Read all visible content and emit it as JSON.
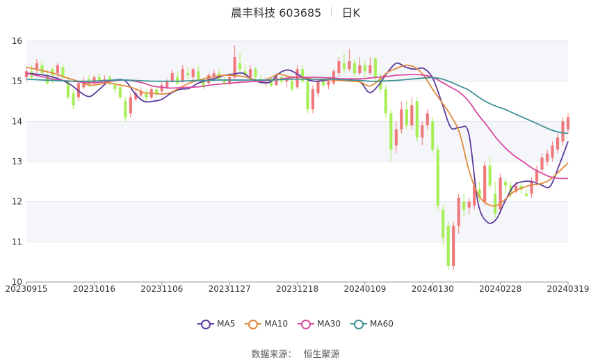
{
  "header": {
    "stock": "晨丰科技 603685",
    "period": "日K"
  },
  "source": {
    "label": "数据来源：",
    "value": "恒生聚源"
  },
  "colors": {
    "up": "#f0787b",
    "down": "#a6ef56",
    "ma5": "#5b3a9d",
    "ma10": "#e0893b",
    "ma30": "#d94aa0",
    "ma60": "#3f9297"
  },
  "chart_data": {
    "type": "candlestick",
    "y_ticks": [
      "10",
      "11",
      "12",
      "13",
      "14",
      "15",
      "16"
    ],
    "ylim": [
      10,
      16
    ],
    "x_ticks": [
      "20230915",
      "20231016",
      "20231106",
      "20231127",
      "20231218",
      "20240109",
      "20240130",
      "20240228",
      "20240319"
    ],
    "grid": true,
    "legend_position": "bottom",
    "series": [
      {
        "name": "MA5",
        "values": [
          15.2,
          15.18,
          15.15,
          15.1,
          15.02,
          14.9,
          14.72,
          14.62,
          14.78,
          14.98,
          15.04,
          15.0,
          14.7,
          14.5,
          14.5,
          14.55,
          14.7,
          14.8,
          14.82,
          14.95,
          15.02,
          15.08,
          15.15,
          15.18,
          15.2,
          15.05,
          14.97,
          14.98,
          15.2,
          15.28,
          15.18,
          15.05,
          15.0,
          15.02,
          15.04,
          15.02,
          15.0,
          14.98,
          14.72,
          14.9,
          15.22,
          15.45,
          15.35,
          15.3,
          15.32,
          15.08,
          14.48,
          13.85,
          13.85,
          13.7,
          12.0,
          11.5,
          11.55,
          12.0,
          12.4,
          12.5,
          12.5,
          12.42,
          12.38,
          12.9,
          13.5
        ]
      },
      {
        "name": "MA10",
        "values": [
          15.35,
          15.3,
          15.25,
          15.2,
          15.12,
          15.05,
          14.98,
          14.9,
          14.92,
          14.96,
          14.92,
          14.88,
          14.82,
          14.72,
          14.7,
          14.68,
          14.72,
          14.84,
          14.95,
          15.02,
          15.08,
          15.12,
          15.15,
          15.14,
          15.12,
          15.06,
          15.0,
          15.08,
          15.18,
          15.12,
          15.1,
          15.08,
          15.05,
          15.04,
          15.03,
          15.02,
          15.0,
          14.98,
          14.88,
          15.02,
          15.22,
          15.32,
          15.4,
          15.35,
          15.15,
          14.8,
          14.48,
          14.15,
          13.7,
          12.8,
          12.2,
          11.95,
          11.9,
          12.05,
          12.25,
          12.35,
          12.42,
          12.45,
          12.55,
          12.75,
          12.97
        ]
      },
      {
        "name": "MA30",
        "values": [
          15.2,
          15.15,
          15.1,
          15.05,
          15.02,
          15.0,
          14.98,
          14.96,
          14.97,
          14.99,
          15.02,
          15.03,
          15.0,
          14.95,
          14.88,
          14.85,
          14.83,
          14.84,
          14.85,
          14.86,
          14.89,
          14.92,
          14.94,
          14.96,
          14.98,
          14.99,
          15.0,
          15.02,
          15.05,
          15.08,
          15.1,
          15.1,
          15.1,
          15.09,
          15.08,
          15.06,
          15.06,
          15.06,
          15.08,
          15.1,
          15.12,
          15.15,
          15.16,
          15.17,
          15.15,
          15.1,
          14.98,
          14.85,
          14.72,
          14.5,
          14.18,
          13.9,
          13.6,
          13.35,
          13.15,
          13.0,
          12.84,
          12.72,
          12.62,
          12.58,
          12.58
        ]
      },
      {
        "name": "MA60",
        "values": [
          15.05,
          15.04,
          15.03,
          15.02,
          15.01,
          15.0,
          15.0,
          15.0,
          15.01,
          15.02,
          15.03,
          15.03,
          15.02,
          15.01,
          15.0,
          15.0,
          15.0,
          15.0,
          15.01,
          15.02,
          15.02,
          15.03,
          15.03,
          15.03,
          15.03,
          15.03,
          15.03,
          15.03,
          15.04,
          15.05,
          15.05,
          15.05,
          15.05,
          15.05,
          15.05,
          15.04,
          15.03,
          15.02,
          15.0,
          15.0,
          15.01,
          15.02,
          15.04,
          15.06,
          15.08,
          15.09,
          15.06,
          14.98,
          14.88,
          14.78,
          14.62,
          14.48,
          14.38,
          14.3,
          14.2,
          14.1,
          14.0,
          13.9,
          13.8,
          13.73,
          13.7
        ]
      }
    ],
    "candles": [
      [
        15.1,
        15.25,
        15.35,
        15.0
      ],
      [
        15.25,
        15.1,
        15.4,
        15.05
      ],
      [
        15.3,
        15.45,
        15.55,
        15.2
      ],
      [
        15.4,
        15.2,
        15.5,
        15.1
      ],
      [
        15.15,
        14.95,
        15.3,
        14.9
      ],
      [
        15.3,
        15.15,
        15.35,
        14.95
      ],
      [
        15.2,
        15.4,
        15.45,
        15.1
      ],
      [
        15.35,
        15.1,
        15.42,
        15.05
      ],
      [
        15.0,
        14.6,
        15.1,
        14.55
      ],
      [
        14.7,
        14.4,
        14.8,
        14.3
      ],
      [
        14.6,
        14.95,
        15.0,
        14.5
      ],
      [
        14.85,
        15.0,
        15.1,
        14.8
      ],
      [
        15.05,
        14.9,
        15.15,
        14.85
      ],
      [
        14.95,
        15.1,
        15.15,
        14.9
      ],
      [
        15.1,
        15.0,
        15.2,
        14.95
      ],
      [
        15.0,
        15.05,
        15.15,
        14.95
      ],
      [
        15.1,
        14.95,
        15.15,
        14.9
      ],
      [
        14.9,
        14.8,
        15.0,
        14.7
      ],
      [
        14.85,
        14.6,
        14.95,
        14.55
      ],
      [
        14.5,
        14.1,
        14.6,
        14.0
      ],
      [
        14.2,
        14.6,
        14.7,
        14.1
      ],
      [
        14.55,
        14.7,
        14.8,
        14.5
      ],
      [
        14.65,
        14.75,
        14.85,
        14.6
      ],
      [
        14.7,
        14.6,
        14.8,
        14.5
      ],
      [
        14.6,
        14.8,
        14.85,
        14.55
      ],
      [
        14.8,
        14.7,
        14.9,
        14.6
      ],
      [
        14.75,
        14.9,
        15.0,
        14.7
      ],
      [
        14.85,
        15.0,
        15.05,
        14.8
      ],
      [
        15.0,
        15.2,
        15.3,
        14.95
      ],
      [
        15.1,
        14.95,
        15.25,
        14.9
      ],
      [
        15.0,
        15.3,
        15.4,
        14.95
      ],
      [
        15.2,
        15.15,
        15.35,
        15.05
      ],
      [
        15.1,
        15.3,
        15.35,
        15.0
      ],
      [
        15.25,
        15.05,
        15.4,
        15.0
      ],
      [
        15.0,
        14.85,
        15.05,
        14.8
      ],
      [
        14.95,
        15.15,
        15.2,
        14.9
      ],
      [
        15.1,
        15.2,
        15.3,
        15.0
      ],
      [
        15.2,
        15.05,
        15.3,
        15.0
      ],
      [
        15.0,
        14.95,
        15.1,
        14.9
      ],
      [
        14.95,
        15.1,
        15.2,
        14.9
      ],
      [
        15.1,
        15.6,
        15.9,
        15.05
      ],
      [
        15.45,
        15.3,
        15.7,
        15.2
      ],
      [
        15.25,
        15.15,
        15.4,
        15.1
      ],
      [
        15.1,
        15.3,
        15.4,
        15.05
      ],
      [
        15.3,
        15.1,
        15.35,
        15.0
      ],
      [
        15.05,
        15.0,
        15.15,
        14.9
      ],
      [
        15.0,
        15.05,
        15.1,
        14.85
      ],
      [
        15.05,
        14.9,
        15.1,
        14.85
      ],
      [
        14.9,
        15.1,
        15.2,
        14.9
      ],
      [
        15.1,
        15.0,
        15.15,
        14.9
      ],
      [
        15.0,
        15.05,
        15.1,
        14.85
      ],
      [
        15.0,
        14.8,
        15.1,
        14.75
      ],
      [
        14.85,
        15.3,
        15.4,
        14.8
      ],
      [
        15.3,
        15.0,
        15.4,
        14.95
      ],
      [
        15.0,
        14.3,
        15.1,
        14.2
      ],
      [
        14.3,
        14.8,
        14.9,
        14.2
      ],
      [
        14.7,
        15.0,
        15.05,
        14.6
      ],
      [
        15.0,
        14.9,
        15.1,
        14.85
      ],
      [
        14.9,
        15.0,
        15.1,
        14.8
      ],
      [
        14.95,
        15.25,
        15.3,
        14.9
      ],
      [
        15.2,
        15.5,
        15.6,
        15.1
      ],
      [
        15.45,
        15.3,
        15.7,
        15.2
      ],
      [
        15.3,
        15.5,
        15.8,
        15.25
      ],
      [
        15.45,
        15.2,
        15.55,
        15.1
      ],
      [
        15.2,
        15.4,
        15.6,
        15.15
      ],
      [
        15.4,
        15.25,
        15.5,
        15.1
      ],
      [
        15.2,
        15.4,
        15.6,
        15.15
      ],
      [
        15.55,
        15.1,
        15.6,
        15.0
      ],
      [
        15.1,
        14.8,
        15.2,
        14.7
      ],
      [
        14.8,
        14.2,
        14.9,
        14.1
      ],
      [
        14.2,
        13.3,
        14.3,
        13.0
      ],
      [
        13.4,
        13.8,
        14.0,
        13.2
      ],
      [
        13.8,
        14.3,
        14.5,
        13.7
      ],
      [
        14.3,
        13.9,
        14.5,
        13.8
      ],
      [
        13.9,
        14.4,
        14.6,
        13.8
      ],
      [
        14.5,
        13.6,
        14.6,
        13.5
      ],
      [
        13.6,
        13.9,
        14.0,
        13.4
      ],
      [
        13.9,
        14.2,
        14.3,
        13.8
      ],
      [
        14.0,
        13.3,
        14.1,
        13.2
      ],
      [
        13.3,
        11.9,
        13.4,
        11.8
      ],
      [
        11.8,
        11.1,
        11.9,
        10.9
      ],
      [
        11.4,
        10.4,
        11.5,
        10.3
      ],
      [
        10.4,
        11.4,
        11.5,
        10.3
      ],
      [
        11.4,
        12.1,
        12.2,
        11.2
      ],
      [
        12.0,
        11.8,
        12.2,
        11.6
      ],
      [
        11.85,
        12.0,
        12.1,
        11.7
      ],
      [
        11.9,
        12.4,
        12.5,
        11.8
      ],
      [
        12.3,
        12.1,
        12.5,
        12.0
      ],
      [
        12.0,
        12.9,
        13.0,
        11.9
      ],
      [
        12.9,
        12.4,
        13.1,
        12.3
      ],
      [
        12.2,
        11.7,
        12.5,
        11.6
      ],
      [
        11.8,
        12.6,
        12.7,
        11.7
      ],
      [
        12.5,
        12.4,
        12.6,
        12.2
      ],
      [
        12.4,
        12.2,
        12.5,
        12.1
      ],
      [
        12.25,
        12.4,
        12.5,
        12.2
      ],
      [
        12.4,
        12.3,
        12.5,
        12.2
      ],
      [
        12.2,
        12.15,
        12.3,
        12.1
      ],
      [
        12.2,
        12.5,
        12.6,
        12.1
      ],
      [
        12.5,
        12.8,
        12.9,
        12.4
      ],
      [
        12.8,
        13.1,
        13.2,
        12.7
      ],
      [
        13.0,
        13.2,
        13.3,
        12.9
      ],
      [
        13.1,
        13.4,
        13.5,
        13.0
      ],
      [
        13.3,
        13.6,
        13.7,
        13.2
      ],
      [
        13.5,
        14.0,
        14.1,
        13.4
      ],
      [
        13.8,
        14.1,
        14.2,
        13.7
      ]
    ]
  }
}
